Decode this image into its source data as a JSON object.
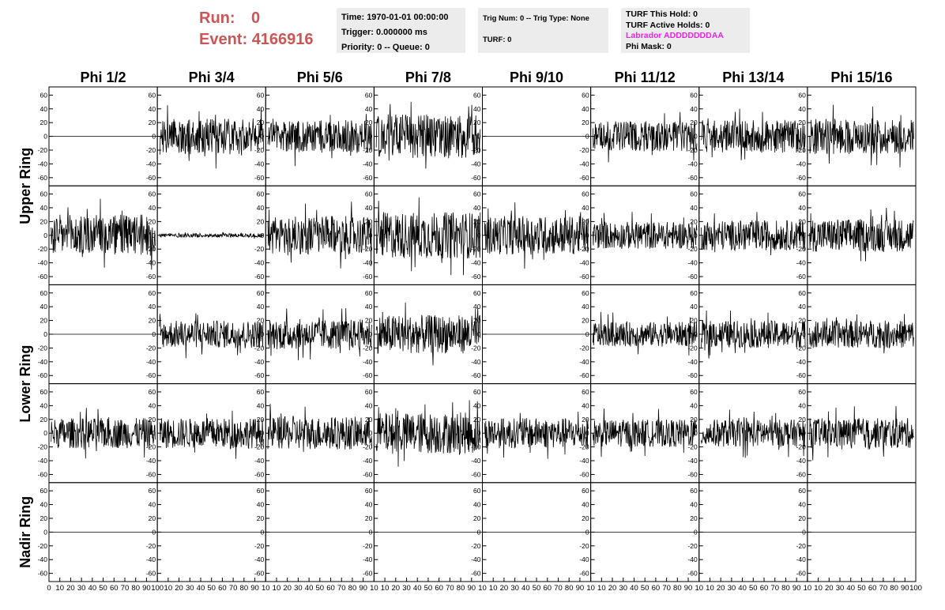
{
  "header": {
    "run_label": "Run:",
    "run_value": "0",
    "event_label": "Event:",
    "event_value": "4166916"
  },
  "info_boxes": {
    "time_box": {
      "time": "Time: 1970-01-01 00:00:00",
      "trigger": "Trigger: 0.000000 ms",
      "priority": "Priority: 0 -- Queue: 0"
    },
    "trig_box": {
      "trig_num": "Trig Num: 0 -- Trig Type: None",
      "turf": "TURF: 0"
    },
    "turf_box": {
      "this_hold": "TURF This Hold: 0",
      "active_holds": "TURF Active Holds: 0",
      "labrador": "Labrador ADDDDDDDAA",
      "phi_mask": "Phi Mask: 0"
    }
  },
  "colors": {
    "run_text": "#cc5555",
    "labrador_text": "#ee22ee",
    "info_bg": "#ececec",
    "trace": "#000000"
  },
  "chart_data": {
    "type": "line",
    "columns": [
      "Phi 1/2",
      "Phi 3/4",
      "Phi 5/6",
      "Phi 7/8",
      "Phi 9/10",
      "Phi 11/12",
      "Phi 13/14",
      "Phi 15/16"
    ],
    "rings": [
      "Upper Ring",
      "Lower Ring",
      "Nadir Ring"
    ],
    "row_ring_labels": [
      "Upper Ring",
      "",
      "Lower Ring",
      "",
      "Nadir Ring"
    ],
    "xlim": [
      0,
      100
    ],
    "ylim": [
      -65,
      65
    ],
    "y_ticks": [
      "60",
      "40",
      "20",
      "0",
      "-20",
      "-40",
      "-60"
    ],
    "x_ticks_first": [
      "0",
      "10",
      "20",
      "30",
      "40",
      "50",
      "60",
      "70",
      "80",
      "90",
      "100"
    ],
    "x_ticks_other": [
      "10",
      "20",
      "30",
      "40",
      "50",
      "60",
      "70",
      "80",
      "90",
      "10"
    ],
    "x_ticks_last": [
      "10",
      "20",
      "30",
      "40",
      "50",
      "60",
      "70",
      "80",
      "90",
      "100"
    ],
    "grid": false,
    "trace_amplitude": [
      [
        0,
        26,
        24,
        32,
        0,
        22,
        24,
        26
      ],
      [
        30,
        3,
        28,
        34,
        28,
        20,
        22,
        24
      ],
      [
        0,
        20,
        22,
        28,
        0,
        18,
        20,
        20
      ],
      [
        22,
        22,
        24,
        30,
        22,
        20,
        20,
        22
      ],
      [
        0,
        0,
        0,
        0,
        0,
        0,
        0,
        0
      ]
    ]
  }
}
